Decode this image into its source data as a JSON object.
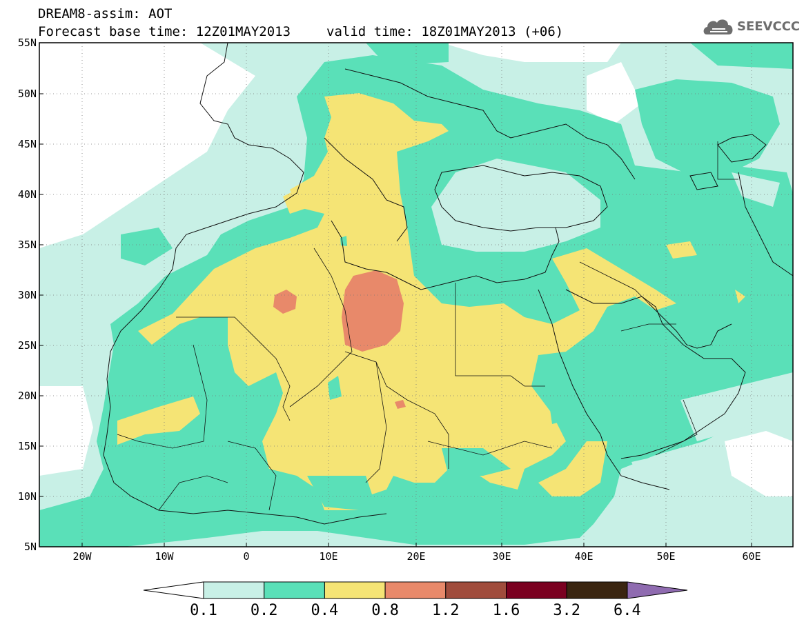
{
  "title": {
    "line1": "DREAM8-assim: AOT",
    "base_time": "Forecast base time: 12Z01MAY2013",
    "valid_time": "valid time: 18Z01MAY2013 (+06)"
  },
  "logo": {
    "text": "SEEVCCC",
    "icon": "cloud-icon"
  },
  "map": {
    "lat_labels": [
      "55N",
      "50N",
      "45N",
      "40N",
      "35N",
      "30N",
      "25N",
      "20N",
      "15N",
      "10N",
      "5N"
    ],
    "lon_labels": [
      "20W",
      "10W",
      "0",
      "10E",
      "20E",
      "30E",
      "40E",
      "50E",
      "60E"
    ],
    "colors": {
      "background": "#c8f0e6",
      "ocean_clean": "#ffffff",
      "aot_0.1": "#c8f0e6",
      "aot_0.2": "#5ae0b8",
      "aot_0.4": "#f5e475",
      "aot_0.8": "#e8896a"
    }
  },
  "colorbar": {
    "labels": [
      "0.1",
      "0.2",
      "0.4",
      "0.8",
      "1.2",
      "1.6",
      "3.2",
      "6.4"
    ],
    "colors": [
      "#c8f0e6",
      "#5ae0b8",
      "#f5e475",
      "#e8896a",
      "#a04c3c",
      "#7a0020",
      "#3a2510"
    ],
    "low_arrow_color": "#ffffff",
    "high_arrow_color": "#8f6bb0"
  }
}
